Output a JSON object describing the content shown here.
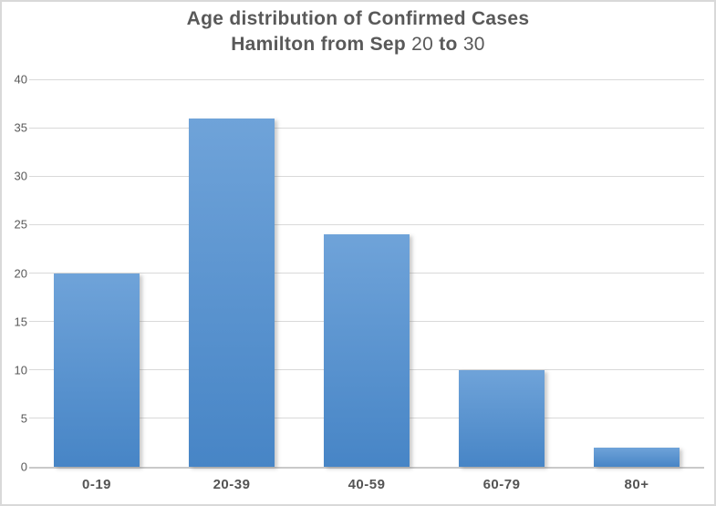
{
  "chart_data": {
    "type": "bar",
    "title": "Age distribution of Confirmed Cases Hamilton from Sep 20 to 30",
    "title_line1": "Age distribution of Confirmed Cases",
    "title_line2": "Hamilton from Sep 20 to 30",
    "categories": [
      "0-19",
      "20-39",
      "40-59",
      "60-79",
      "80+"
    ],
    "values": [
      20,
      36,
      24,
      10,
      2
    ],
    "xlabel": "",
    "ylabel": "",
    "ylim": [
      0,
      40
    ],
    "yticks": [
      0,
      5,
      10,
      15,
      20,
      25,
      30,
      35,
      40
    ],
    "grid": true,
    "legend": false,
    "bar_color_top": "#6FA3D9",
    "bar_color_bottom": "#4785C6",
    "gridline_color": "#d9d9d9",
    "axis_line_color": "#c9c9c9",
    "text_color": "#595959",
    "border_color": "#d9d9d9",
    "background_color": "#ffffff"
  }
}
